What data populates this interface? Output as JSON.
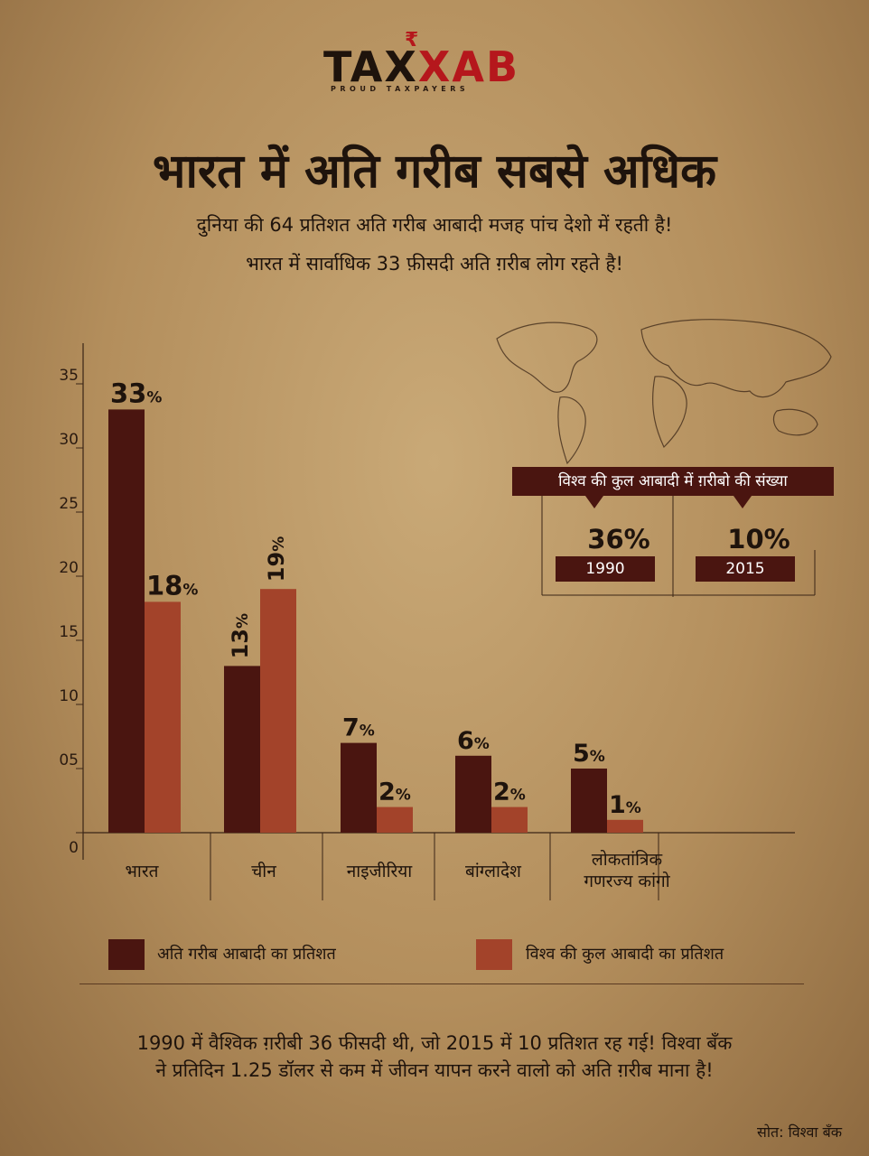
{
  "brand": {
    "logo_text_left": "TAX",
    "logo_text_right": "AB",
    "logo_x": "X",
    "logo_tagline": "PROUD TAXPAYERS"
  },
  "title": "भारत में अति गरीब सबसे अधिक",
  "subtitle_1": "दुनिया की 64 प्रतिशत अति गरीब आबादी मजह पांच देशो में रहती है!",
  "subtitle_2": "भारत में सार्वाधिक 33 फ़ीसदी अति ग़रीब लोग रहते है!",
  "world_box": {
    "title": "विश्व की कुल आबादी में ग़रीबो की संख्या",
    "items": [
      {
        "value": "36%",
        "year": "1990"
      },
      {
        "value": "10%",
        "year": "2015"
      }
    ]
  },
  "chart_data": {
    "type": "bar",
    "categories": [
      "भारत",
      "चीन",
      "नाइजीरिया",
      "बांग्लादेश",
      "लोकतांत्रिक गणरज्य कांगो"
    ],
    "category_lines": [
      [
        "भारत"
      ],
      [
        "चीन"
      ],
      [
        "नाइजीरिया"
      ],
      [
        "बांग्लादेश"
      ],
      [
        "लोकतांत्रिक",
        "गणरज्य कांगो"
      ]
    ],
    "series": [
      {
        "name": "अति गरीब आबादी का प्रतिशत",
        "values": [
          33,
          13,
          7,
          6,
          5
        ],
        "color": "#4a1510"
      },
      {
        "name": "विश्व की कुल आबादी का प्रतिशत",
        "values": [
          18,
          19,
          2,
          2,
          1
        ],
        "color": "#a3432a"
      }
    ],
    "value_labels": [
      [
        "33%",
        "13%",
        "7%",
        "6%",
        "5%"
      ],
      [
        "18%",
        "19%",
        "2%",
        "2%",
        "1%"
      ]
    ],
    "y_ticks": [
      "0",
      "05",
      "10",
      "15",
      "20",
      "25",
      "30",
      "35"
    ],
    "ylim": [
      0,
      36
    ],
    "grid": false,
    "legend_position": "bottom"
  },
  "footnote_1": "1990 में वैश्विक ग़रीबी 36 फीसदी थी, जो 2015 में 10 प्रतिशत रह गई! विश्वा बँक",
  "footnote_2": "ने प्रतिदिन 1.25 डॉलर से कम में जीवन यापन करने वालो को अति ग़रीब माना है!",
  "source": "सोत: विश्वा बँक"
}
